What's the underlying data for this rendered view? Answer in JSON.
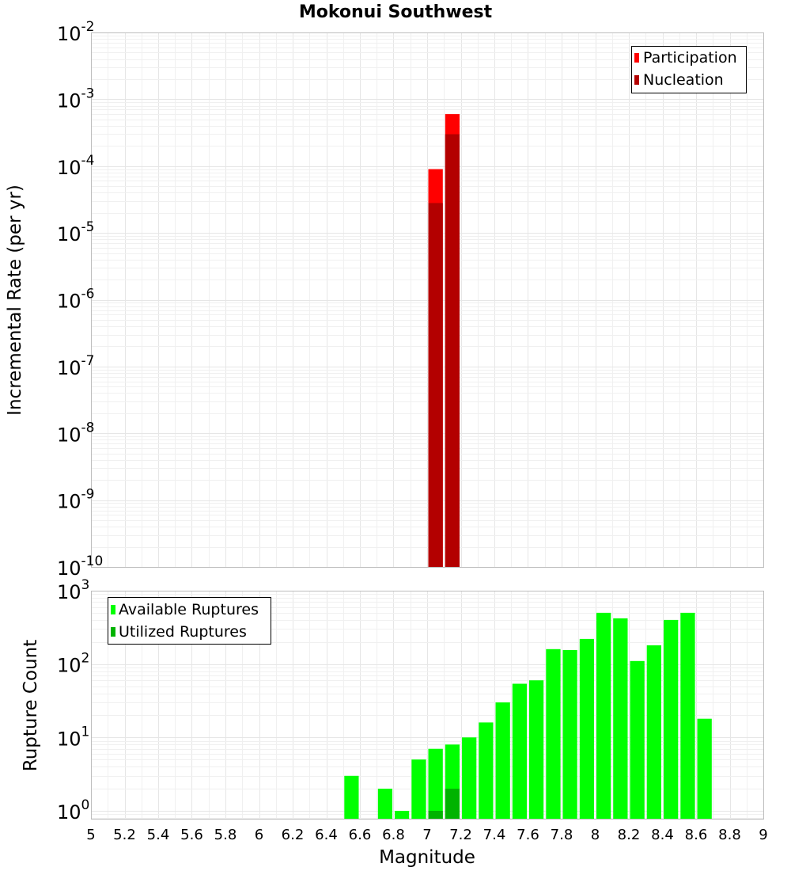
{
  "chart_data": [
    {
      "type": "bar",
      "title": "Mokonui Southwest",
      "xlabel": "",
      "ylabel": "Incremental Rate (per yr)",
      "yscale": "log",
      "ylim": [
        1e-10,
        0.01
      ],
      "xlim": [
        5,
        9
      ],
      "grid": true,
      "legend_position": "top-right",
      "bin_width": 0.1,
      "y_tick_exponents": [
        -10,
        -9,
        -8,
        -7,
        -6,
        -5,
        -4,
        -3,
        -2
      ],
      "series": [
        {
          "name": "Participation",
          "color": "#ff0000",
          "x": [
            7.05,
            7.15
          ],
          "values": [
            9e-05,
            0.0006
          ]
        },
        {
          "name": "Nucleation",
          "color": "#b30000",
          "x": [
            7.05,
            7.15
          ],
          "values": [
            2.8e-05,
            0.0003
          ]
        }
      ]
    },
    {
      "type": "bar",
      "xlabel": "Magnitude",
      "ylabel": "Rupture Count",
      "yscale": "log",
      "ylim": [
        0.78,
        1000
      ],
      "xlim": [
        5,
        9
      ],
      "grid": true,
      "legend_position": "top-left",
      "bin_width": 0.1,
      "y_tick_exponents": [
        0,
        1,
        2,
        3
      ],
      "x_ticks": [
        "5",
        "5.2",
        "5.4",
        "5.6",
        "5.8",
        "6",
        "6.2",
        "6.4",
        "6.6",
        "6.8",
        "7",
        "7.2",
        "7.4",
        "7.6",
        "7.8",
        "8",
        "8.2",
        "8.4",
        "8.6",
        "8.8",
        "9"
      ],
      "series": [
        {
          "name": "Available Ruptures",
          "color": "#00ff00",
          "x": [
            6.55,
            6.75,
            6.85,
            6.95,
            7.05,
            7.15,
            7.25,
            7.35,
            7.45,
            7.55,
            7.65,
            7.75,
            7.85,
            7.95,
            8.05,
            8.15,
            8.25,
            8.35,
            8.45,
            8.55,
            8.65
          ],
          "values": [
            3,
            2,
            1,
            5,
            7,
            8,
            10,
            16,
            30,
            54,
            60,
            160,
            155,
            220,
            500,
            420,
            110,
            180,
            400,
            500,
            18
          ]
        },
        {
          "name": "Utilized Ruptures",
          "color": "#00b300",
          "x": [
            7.05,
            7.15
          ],
          "values": [
            1,
            2
          ]
        }
      ]
    }
  ]
}
